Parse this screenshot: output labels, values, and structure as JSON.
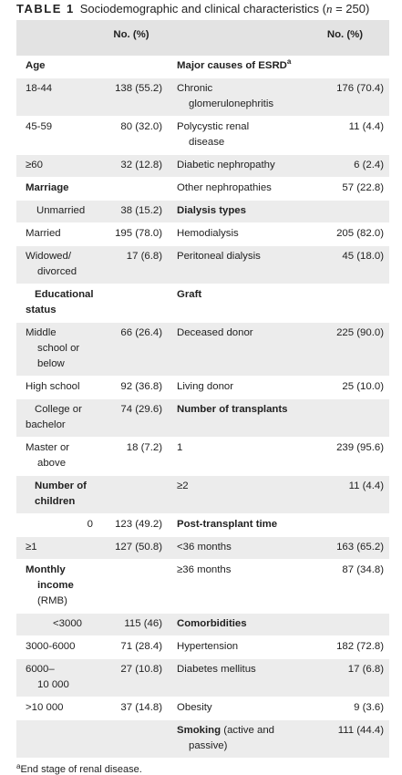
{
  "caption": {
    "label": "TABLE 1",
    "text_before": "Sociodemographic and clinical characteristics (",
    "n_symbol": "n",
    "text_after": " = 250)"
  },
  "headers": {
    "col2": "No. (%)",
    "col4": "No. (%)"
  },
  "rows": [
    {
      "l1": "Age",
      "v1": "",
      "l2": "Major causes of ESRD",
      "l2_sup": "a",
      "v2": ""
    },
    {
      "l1": "18-44",
      "v1": "138 (55.2)",
      "l2a": "Chronic",
      "l2b": "glomerulonephritis",
      "v2": "176 (70.4)"
    },
    {
      "l1": "45-59",
      "v1": "80 (32.0)",
      "l2a": "Polycystic renal",
      "l2b": "disease",
      "v2": "11 (4.4)"
    },
    {
      "l1": "≥60",
      "v1": "32 (12.8)",
      "l2": "Diabetic nephropathy",
      "v2": "6 (2.4)"
    },
    {
      "l1": "Marriage",
      "v1": "",
      "l2": "Other nephropathies",
      "v2": "57 (22.8)"
    },
    {
      "l1": "Unmarried",
      "v1": "38 (15.2)",
      "l2": "Dialysis types",
      "v2": ""
    },
    {
      "l1": "Married",
      "v1": "195 (78.0)",
      "l2": "Hemodialysis",
      "v2": "205 (82.0)"
    },
    {
      "l1a": "Widowed/",
      "l1b": "divorced",
      "v1": "17 (6.8)",
      "l2": "Peritoneal dialysis",
      "v2": "45 (18.0)"
    },
    {
      "l1a": "Educational",
      "l1b": "status",
      "v1": "",
      "l2": "Graft",
      "v2": ""
    },
    {
      "l1a": "Middle",
      "l1b": "school or",
      "l1c": "below",
      "v1": "66 (26.4)",
      "l2": "Deceased donor",
      "v2": "225 (90.0)"
    },
    {
      "l1": "High school",
      "v1": "92 (36.8)",
      "l2": "Living donor",
      "v2": "25 (10.0)"
    },
    {
      "l1a": "College or",
      "l1b": "bachelor",
      "v1": "74 (29.6)",
      "l2": "Number of transplants",
      "v2": ""
    },
    {
      "l1a": "Master or",
      "l1b": "above",
      "v1": "18 (7.2)",
      "l2": "1",
      "v2": "239 (95.6)"
    },
    {
      "l1a": "Number of",
      "l1b": "children",
      "v1": "",
      "l2": "≥2",
      "v2": "11 (4.4)"
    },
    {
      "l1": "0",
      "v1": "123 (49.2)",
      "l2": "Post-transplant time",
      "v2": ""
    },
    {
      "l1": "≥1",
      "v1": "127 (50.8)",
      "l2": "<36 months",
      "v2": "163 (65.2)"
    },
    {
      "l1a": "Monthly",
      "l1b": "income",
      "l1c": "(RMB)",
      "v1": "",
      "l2": "≥36 months",
      "v2": "87 (34.8)"
    },
    {
      "l1": "<3000",
      "v1": "115 (46)",
      "l2": "Comorbidities",
      "v2": ""
    },
    {
      "l1": "3000-6000",
      "v1": "71 (28.4)",
      "l2": "Hypertension",
      "v2": "182 (72.8)"
    },
    {
      "l1a": "6000–",
      "l1b": "10 000",
      "v1": "27 (10.8)",
      "l2": "Diabetes mellitus",
      "v2": "17 (6.8)"
    },
    {
      "l1": ">10 000",
      "v1": "37 (14.8)",
      "l2": "Obesity",
      "v2": "9 (3.6)"
    },
    {
      "l1": "",
      "v1": "",
      "l2_bold": "Smoking",
      "l2_rest": " (active and",
      "l2b": "passive)",
      "v2": "111 (44.4)"
    }
  ],
  "footnote": {
    "sup": "a",
    "text": "End stage of renal disease."
  }
}
